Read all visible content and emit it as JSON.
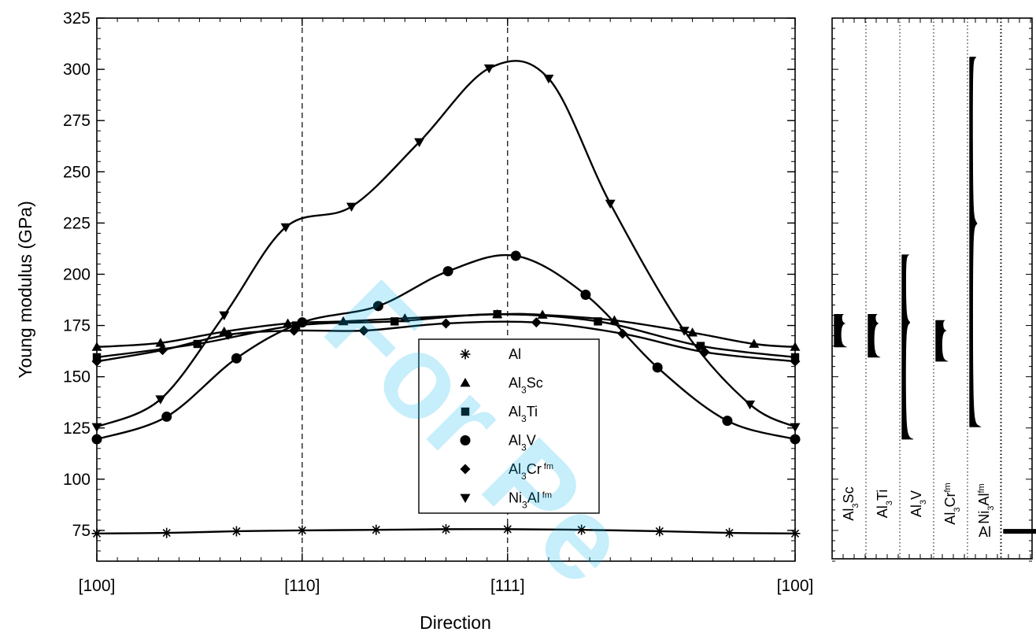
{
  "watermark": "For Pe",
  "chart_data": {
    "type": "line",
    "xlabel": "Direction",
    "ylabel": "Young modulus (GPa)",
    "ylim": [
      60,
      325
    ],
    "yticks": [
      75,
      100,
      125,
      150,
      175,
      200,
      225,
      250,
      275,
      300,
      325
    ],
    "xticks": [
      {
        "label": "[100]",
        "x": 0
      },
      {
        "label": "[110]",
        "x": 1
      },
      {
        "label": "[111]",
        "x": 2
      },
      {
        "label": "[100]",
        "x": 3.4
      }
    ],
    "reference_lines_at": [
      "[110]",
      "[111]"
    ],
    "legend_position": "center",
    "series": [
      {
        "id": "al",
        "name": "Al",
        "name_parts": [
          [
            "Al",
            ""
          ]
        ],
        "marker": "star",
        "x": [
          0,
          0.34,
          0.68,
          1,
          1.36,
          1.7,
          2,
          2.36,
          2.74,
          3.08,
          3.4
        ],
        "y": [
          73.5,
          73.8,
          74.6,
          75,
          75.3,
          75.6,
          75.6,
          75.3,
          74.6,
          73.8,
          73.5
        ]
      },
      {
        "id": "al3sc",
        "name": "Al3Sc",
        "name_parts": [
          [
            "Al",
            ""
          ],
          [
            "3",
            "sub"
          ],
          [
            "Sc",
            ""
          ]
        ],
        "marker": "triangle-up",
        "x": [
          0,
          0.31,
          0.62,
          0.93,
          1.2,
          1.5,
          1.95,
          2.17,
          2.52,
          2.9,
          3.2,
          3.4
        ],
        "y": [
          164.5,
          166.5,
          172,
          176,
          177,
          178.5,
          180.5,
          180.2,
          177.5,
          171.5,
          166,
          164.5
        ]
      },
      {
        "id": "al3ti",
        "name": "Al3Ti",
        "name_parts": [
          [
            "Al",
            ""
          ],
          [
            "3",
            "sub"
          ],
          [
            "Ti",
            ""
          ]
        ],
        "marker": "square",
        "x": [
          0,
          0.49,
          0.97,
          1.45,
          1.95,
          2.44,
          2.94,
          3.4
        ],
        "y": [
          159.5,
          166,
          175,
          177,
          180.5,
          177,
          165,
          159.5
        ]
      },
      {
        "id": "al3v",
        "name": "Al3V",
        "name_parts": [
          [
            "Al",
            ""
          ],
          [
            "3",
            "sub"
          ],
          [
            "V",
            ""
          ]
        ],
        "marker": "circle",
        "x": [
          0,
          0.34,
          0.68,
          1,
          1.37,
          1.71,
          2.04,
          2.38,
          2.73,
          3.07,
          3.4
        ],
        "y": [
          119.5,
          130.5,
          159,
          176.5,
          184.5,
          201.5,
          209,
          190,
          154.5,
          128.5,
          119.5
        ]
      },
      {
        "id": "al3cr",
        "name": "Al3Cr fm",
        "name_parts": [
          [
            "Al",
            ""
          ],
          [
            "3",
            "sub"
          ],
          [
            "Cr",
            ""
          ],
          [
            " fm",
            "sup"
          ]
        ],
        "marker": "diamond",
        "x": [
          0,
          0.32,
          0.64,
          0.96,
          1.3,
          1.7,
          2.14,
          2.56,
          2.96,
          3.4
        ],
        "y": [
          157.5,
          163,
          170.5,
          172.5,
          172.5,
          176,
          176.5,
          171,
          162,
          157.5
        ]
      },
      {
        "id": "ni3al",
        "name": "Ni3Al fm",
        "name_parts": [
          [
            "Ni",
            ""
          ],
          [
            "3",
            "sub"
          ],
          [
            "Al",
            ""
          ],
          [
            " fm",
            "sup"
          ]
        ],
        "marker": "triangle-down",
        "x": [
          0,
          0.31,
          0.62,
          0.92,
          1.24,
          1.57,
          1.91,
          2.2,
          2.5,
          2.86,
          3.18,
          3.4
        ],
        "y": [
          125.5,
          139,
          180,
          223,
          233,
          264.5,
          300.5,
          295.5,
          234.5,
          172.5,
          136.5,
          125.5
        ]
      }
    ],
    "side_panel": {
      "type": "distribution",
      "columns": [
        {
          "label_parts": [
            [
              "Al",
              ""
            ],
            [
              "3",
              "sub"
            ],
            [
              "Sc",
              ""
            ]
          ],
          "min": 164.5,
          "max": 180.5,
          "peak": 176
        },
        {
          "label_parts": [
            [
              "Al",
              ""
            ],
            [
              "3",
              "sub"
            ],
            [
              "Ti",
              ""
            ]
          ],
          "min": 159.5,
          "max": 180.5,
          "peak": 176
        },
        {
          "label_parts": [
            [
              "Al",
              ""
            ],
            [
              "3",
              "sub"
            ],
            [
              "V",
              ""
            ]
          ],
          "min": 119.5,
          "max": 209.5,
          "peak": 176.5
        },
        {
          "label_parts": [
            [
              "Al",
              ""
            ],
            [
              "3",
              "sub"
            ],
            [
              "Cr",
              ""
            ],
            [
              "fm",
              "sup"
            ]
          ],
          "min": 157.5,
          "max": 177.5,
          "peak": 172.5
        },
        {
          "label_parts": [
            [
              "Ni",
              ""
            ],
            [
              "3",
              "sub"
            ],
            [
              "Al",
              ""
            ],
            [
              "fm",
              "sup"
            ]
          ],
          "min": 125.5,
          "max": 306,
          "peak": 225
        },
        {
          "label_parts": [
            [
              "Al",
              ""
            ]
          ],
          "min": 73.5,
          "max": 75.6,
          "peak": 75
        }
      ]
    }
  }
}
